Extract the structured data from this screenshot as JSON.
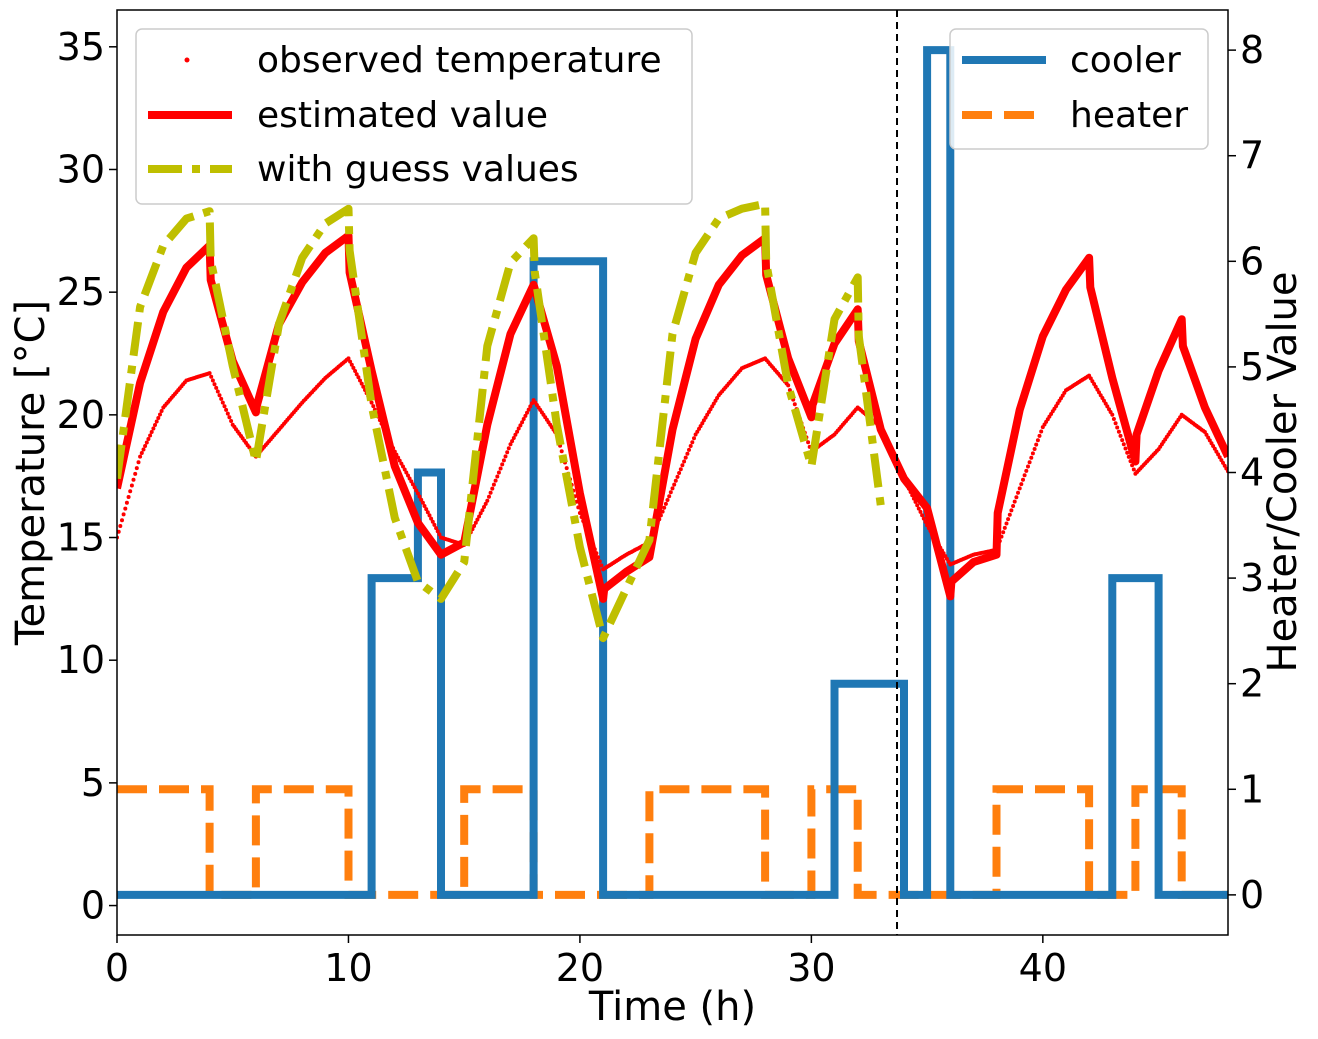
{
  "chart_data": {
    "type": "line",
    "xlabel": "Time (h)",
    "ylabel_left": "Temperature [°C]",
    "ylabel_right": "Heater/Cooler Value",
    "xlim": [
      0,
      48
    ],
    "ylim_left": [
      -1.2,
      36.5
    ],
    "ylim_right": [
      -0.38,
      8.38
    ],
    "x_ticks": [
      0,
      10,
      20,
      30,
      40
    ],
    "y_ticks_left": [
      0,
      5,
      10,
      15,
      20,
      25,
      30,
      35
    ],
    "y_ticks_right": [
      0,
      1,
      2,
      3,
      4,
      5,
      6,
      7,
      8
    ],
    "vline_x": 33.7,
    "grid": false,
    "colors": {
      "observed": "#ff0000",
      "estimated": "#ff0000",
      "guess": "#bfbf00",
      "cooler": "#1f77b4",
      "heater": "#ff7f0e",
      "left_label": "#d62728"
    },
    "legend_left": {
      "position": "upper-left",
      "entries": [
        "observed temperature",
        "estimated value",
        "with guess values"
      ]
    },
    "legend_right": {
      "position": "upper-right",
      "entries": [
        "cooler",
        "heater"
      ]
    },
    "series": [
      {
        "name": "observed temperature",
        "axis": "left",
        "style": "dots",
        "x": [
          0,
          1,
          2,
          3,
          4,
          5,
          6,
          7,
          8,
          9,
          10,
          11,
          12,
          13,
          14,
          15,
          16,
          17,
          18,
          19,
          20,
          21,
          22,
          23,
          24,
          25,
          26,
          27,
          28,
          29,
          30,
          31,
          32,
          33,
          34,
          35,
          36,
          37,
          38,
          39,
          40,
          41,
          42,
          43,
          44,
          45,
          46,
          47,
          48
        ],
        "y": [
          15.0,
          18.3,
          20.3,
          21.4,
          21.7,
          19.6,
          18.3,
          19.4,
          20.5,
          21.5,
          22.3,
          20.5,
          18.5,
          16.8,
          15.0,
          14.7,
          16.5,
          18.8,
          20.6,
          19.2,
          16.0,
          13.7,
          14.3,
          14.8,
          17.0,
          19.2,
          20.8,
          21.9,
          22.3,
          21.2,
          18.5,
          19.2,
          20.3,
          19.5,
          17.4,
          15.5,
          13.9,
          14.3,
          14.5,
          17.0,
          19.5,
          21.0,
          21.6,
          20.0,
          17.6,
          18.6,
          20.0,
          19.3,
          17.7
        ]
      },
      {
        "name": "estimated value",
        "axis": "left",
        "style": "solid",
        "x": [
          0,
          1,
          2,
          3,
          4,
          4.05,
          5,
          6,
          6.05,
          7,
          8,
          9,
          10,
          10.05,
          11,
          12,
          13,
          14,
          15,
          16,
          17,
          18,
          19,
          20,
          21,
          21.05,
          22,
          23,
          24,
          25,
          26,
          27,
          28,
          28.05,
          29,
          30,
          30.05,
          31,
          32,
          32.05,
          33,
          34,
          35,
          36,
          36.05,
          37,
          38,
          38.05,
          39,
          40,
          41,
          42,
          42.05,
          43,
          44,
          44.05,
          45,
          46,
          46.05,
          47,
          48
        ],
        "y": [
          17.0,
          21.3,
          24.2,
          26.0,
          26.9,
          25.5,
          22.2,
          20.1,
          20.4,
          23.7,
          25.4,
          26.6,
          27.3,
          25.8,
          21.8,
          17.9,
          15.6,
          14.3,
          14.8,
          19.6,
          23.3,
          25.3,
          22.0,
          16.8,
          12.5,
          12.9,
          13.6,
          14.2,
          19.4,
          23.1,
          25.3,
          26.5,
          27.2,
          25.7,
          22.3,
          19.9,
          20.4,
          22.9,
          24.3,
          23.0,
          19.4,
          17.4,
          16.2,
          12.6,
          13.2,
          14.0,
          14.3,
          16.0,
          20.2,
          23.2,
          25.1,
          26.4,
          25.2,
          21.5,
          18.1,
          19.2,
          21.8,
          23.9,
          22.8,
          20.3,
          18.3
        ]
      },
      {
        "name": "with guess values",
        "axis": "left",
        "style": "dashdot",
        "x": [
          0,
          1,
          2,
          3,
          4,
          4.05,
          5,
          6,
          7,
          8,
          9,
          10,
          10.05,
          11,
          12,
          13,
          14,
          15,
          16,
          17,
          18,
          18.05,
          19,
          20,
          21,
          22,
          23,
          24,
          25,
          26,
          27,
          28,
          28.05,
          29,
          30,
          31,
          32,
          32.05,
          33
        ],
        "y": [
          17.4,
          24.4,
          26.9,
          28.0,
          28.3,
          26.3,
          22.0,
          18.1,
          23.7,
          26.4,
          27.8,
          28.4,
          26.7,
          20.4,
          15.8,
          13.2,
          12.5,
          14.0,
          22.8,
          26.2,
          27.2,
          25.8,
          19.6,
          14.6,
          10.9,
          12.9,
          14.9,
          23.3,
          26.6,
          28.0,
          28.4,
          28.6,
          26.2,
          21.2,
          17.9,
          23.9,
          25.6,
          23.2,
          16.3
        ]
      },
      {
        "name": "cooler",
        "axis": "right",
        "style": "step",
        "x": [
          0,
          11,
          11,
          13,
          13,
          14,
          14,
          18,
          18,
          21,
          21,
          31,
          31,
          34,
          34,
          35,
          35,
          36,
          36,
          43,
          43,
          45,
          45,
          48
        ],
        "y": [
          0,
          0,
          3,
          3,
          4,
          4,
          0,
          0,
          6,
          6,
          0,
          0,
          2,
          2,
          0,
          0,
          8,
          8,
          0,
          0,
          3,
          3,
          0,
          0
        ]
      },
      {
        "name": "heater",
        "axis": "right",
        "style": "dashed-step",
        "x": [
          0,
          4,
          4,
          6,
          6,
          10,
          10,
          15,
          15,
          18,
          18,
          23,
          23,
          28,
          28,
          30,
          30,
          32,
          32,
          38,
          38,
          42,
          42,
          44,
          44,
          46,
          46,
          48
        ],
        "y": [
          1,
          1,
          0,
          0,
          1,
          1,
          0,
          0,
          1,
          1,
          0,
          0,
          1,
          1,
          0,
          0,
          1,
          1,
          0,
          0,
          1,
          1,
          0,
          0,
          1,
          1,
          0,
          0
        ]
      }
    ]
  }
}
